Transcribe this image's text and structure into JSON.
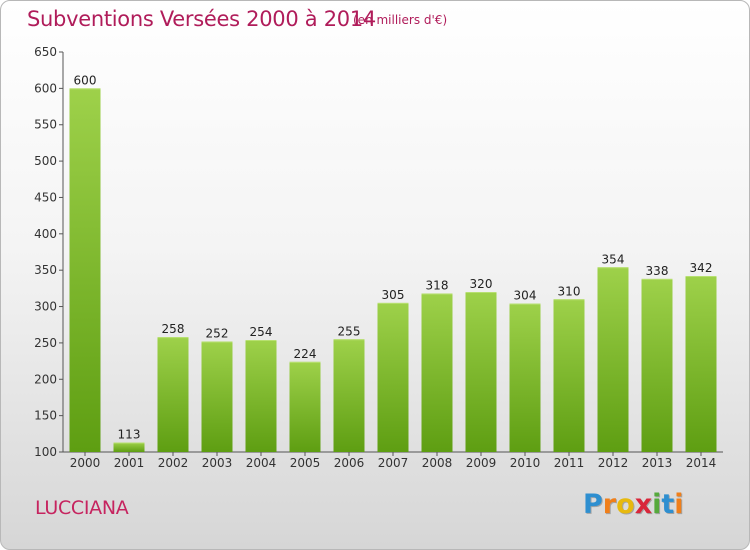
{
  "chart_data": {
    "type": "bar",
    "title": "Subventions Versées 2000 à 2014",
    "subtitle": "(en milliers d'€)",
    "categories": [
      "2000",
      "2001",
      "2002",
      "2003",
      "2004",
      "2005",
      "2006",
      "2007",
      "2008",
      "2009",
      "2010",
      "2011",
      "2012",
      "2013",
      "2014"
    ],
    "values": [
      600,
      113,
      258,
      252,
      254,
      224,
      255,
      305,
      318,
      320,
      304,
      310,
      354,
      338,
      342
    ],
    "ylim": [
      100,
      650
    ],
    "yticks": [
      100,
      150,
      200,
      250,
      300,
      350,
      400,
      450,
      500,
      550,
      600,
      650
    ],
    "grid": false,
    "colors": {
      "bar_top": "#9ed14a",
      "bar_bottom": "#5e9e12",
      "title": "#b01c5a"
    }
  },
  "footer": {
    "commune": "LUCCIANA",
    "logo_letters": [
      {
        "ch": "P",
        "color": "#2e8fd0"
      },
      {
        "ch": "r",
        "color": "#f07f1a"
      },
      {
        "ch": "o",
        "color": "#e7b90e"
      },
      {
        "ch": "x",
        "color": "#d9263a"
      },
      {
        "ch": "i",
        "color": "#56a93c"
      },
      {
        "ch": "t",
        "color": "#2e8fd0"
      },
      {
        "ch": "i",
        "color": "#f07f1a"
      }
    ]
  }
}
